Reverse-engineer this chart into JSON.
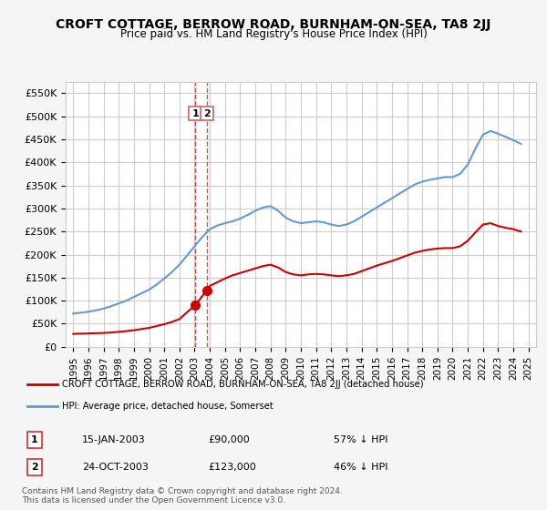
{
  "title": "CROFT COTTAGE, BERROW ROAD, BURNHAM-ON-SEA, TA8 2JJ",
  "subtitle": "Price paid vs. HM Land Registry's House Price Index (HPI)",
  "ylabel": "",
  "ylim": [
    0,
    575000
  ],
  "yticks": [
    0,
    50000,
    100000,
    150000,
    200000,
    250000,
    300000,
    350000,
    400000,
    450000,
    500000,
    550000
  ],
  "ytick_labels": [
    "£0",
    "£50K",
    "£100K",
    "£150K",
    "£200K",
    "£250K",
    "£300K",
    "£350K",
    "£400K",
    "£450K",
    "£500K",
    "£550K"
  ],
  "background_color": "#f5f5f5",
  "plot_bg_color": "#ffffff",
  "grid_color": "#cccccc",
  "hpi_color": "#6699cc",
  "price_color": "#cc0000",
  "dashed_line_color": "#cc0000",
  "sale1_date_x": 2003.04,
  "sale1_price": 90000,
  "sale1_label": "1",
  "sale2_date_x": 2003.81,
  "sale2_price": 123000,
  "sale2_label": "2",
  "legend_property": "CROFT COTTAGE, BERROW ROAD, BURNHAM-ON-SEA, TA8 2JJ (detached house)",
  "legend_hpi": "HPI: Average price, detached house, Somerset",
  "table_row1": [
    "1",
    "15-JAN-2003",
    "£90,000",
    "57% ↓ HPI"
  ],
  "table_row2": [
    "2",
    "24-OCT-2003",
    "£123,000",
    "46% ↓ HPI"
  ],
  "footer": "Contains HM Land Registry data © Crown copyright and database right 2024.\nThis data is licensed under the Open Government Licence v3.0.",
  "hpi_x": [
    1995,
    1995.5,
    1996,
    1996.5,
    1997,
    1997.5,
    1998,
    1998.5,
    1999,
    1999.5,
    2000,
    2000.5,
    2001,
    2001.5,
    2002,
    2002.5,
    2003,
    2003.5,
    2004,
    2004.5,
    2005,
    2005.5,
    2006,
    2006.5,
    2007,
    2007.5,
    2008,
    2008.5,
    2009,
    2009.5,
    2010,
    2010.5,
    2011,
    2011.5,
    2012,
    2012.5,
    2013,
    2013.5,
    2014,
    2014.5,
    2015,
    2015.5,
    2016,
    2016.5,
    2017,
    2017.5,
    2018,
    2018.5,
    2019,
    2019.5,
    2020,
    2020.5,
    2021,
    2021.5,
    2022,
    2022.5,
    2023,
    2023.5,
    2024,
    2024.5
  ],
  "hpi_y": [
    72000,
    74000,
    76000,
    79000,
    83000,
    88000,
    94000,
    100000,
    108000,
    116000,
    124000,
    135000,
    148000,
    162000,
    178000,
    198000,
    218000,
    238000,
    255000,
    263000,
    268000,
    272000,
    278000,
    286000,
    295000,
    302000,
    305000,
    295000,
    280000,
    272000,
    268000,
    270000,
    272000,
    270000,
    265000,
    262000,
    265000,
    272000,
    282000,
    292000,
    302000,
    312000,
    322000,
    332000,
    342000,
    352000,
    358000,
    362000,
    365000,
    368000,
    368000,
    375000,
    395000,
    430000,
    460000,
    468000,
    462000,
    455000,
    448000,
    440000
  ],
  "price_x": [
    1995,
    1995.5,
    1996,
    1996.5,
    1997,
    1997.5,
    1998,
    1998.5,
    1999,
    1999.5,
    2000,
    2000.5,
    2001,
    2001.5,
    2002,
    2002.5,
    2003.04,
    2003.81,
    2004,
    2004.5,
    2005,
    2005.5,
    2006,
    2006.5,
    2007,
    2007.5,
    2008,
    2008.5,
    2009,
    2009.5,
    2010,
    2010.5,
    2011,
    2011.5,
    2012,
    2012.5,
    2013,
    2013.5,
    2014,
    2014.5,
    2015,
    2015.5,
    2016,
    2016.5,
    2017,
    2017.5,
    2018,
    2018.5,
    2019,
    2019.5,
    2020,
    2020.5,
    2021,
    2021.5,
    2022,
    2022.5,
    2023,
    2023.5,
    2024,
    2024.5
  ],
  "price_y": [
    28000,
    28500,
    29000,
    29500,
    30000,
    31000,
    32500,
    34000,
    36000,
    38500,
    41000,
    45000,
    49000,
    54000,
    60000,
    75000,
    90000,
    123000,
    132000,
    140000,
    148000,
    155000,
    160000,
    165000,
    170000,
    175000,
    178000,
    172000,
    162000,
    157000,
    155000,
    157000,
    158000,
    157000,
    155000,
    153000,
    155000,
    158000,
    164000,
    170000,
    176000,
    181000,
    186000,
    192000,
    198000,
    204000,
    208000,
    211000,
    213000,
    214000,
    214000,
    218000,
    230000,
    248000,
    265000,
    268000,
    262000,
    258000,
    255000,
    250000
  ],
  "xlim": [
    1994.5,
    2025.5
  ],
  "xticks": [
    1995,
    1996,
    1997,
    1998,
    1999,
    2000,
    2001,
    2002,
    2003,
    2004,
    2005,
    2006,
    2007,
    2008,
    2009,
    2010,
    2011,
    2012,
    2013,
    2014,
    2015,
    2016,
    2017,
    2018,
    2019,
    2020,
    2021,
    2022,
    2023,
    2024,
    2025
  ]
}
